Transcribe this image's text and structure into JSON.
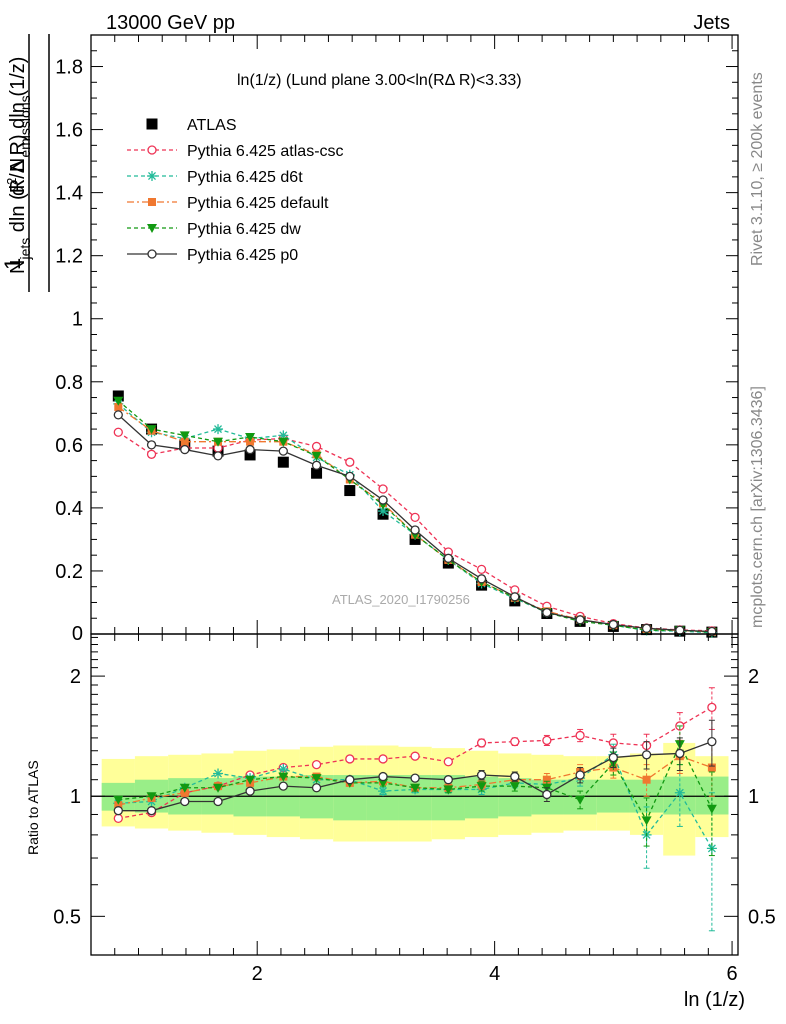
{
  "header": {
    "energy_label": "13000 GeV pp",
    "category_label": "Jets"
  },
  "side_text": {
    "rivet": "Rivet 3.1.10, ≥ 200k events",
    "mcplots": "mcplots.cern.ch [arXiv:1306.3436]"
  },
  "watermark": "ATLAS_2020_I1790256",
  "colors": {
    "ATLAS": "#000000",
    "atlas-csc": "#ee3355",
    "d6t": "#22bb99",
    "default": "#f07830",
    "dw": "#119911",
    "p0": "#333333",
    "band_inner": "#99ee88",
    "band_outer": "#ffff99"
  },
  "chart_data": [
    {
      "type": "scatter",
      "title": "ln(1/z) (Lund plane 3.00<ln(RΔ R)<3.33)",
      "ylabel": "1/N_jets d²N_emissions / dln(R/ΔR) dln(1/z)",
      "xlabel": "ln (1/z)",
      "xlim": [
        0.6,
        6.05
      ],
      "ylim": [
        0,
        1.9
      ],
      "x_ticks": [
        2,
        4,
        6
      ],
      "y_ticks": [
        0.2,
        0.4,
        0.6,
        0.8,
        1,
        1.2,
        1.4,
        1.6,
        1.8
      ],
      "y_tick_labels": [
        "0.2",
        "0.4",
        "0.6",
        "0.8",
        "1",
        "1.2",
        "1.4",
        "1.6",
        "1.8"
      ],
      "bottom_tick_label": "0",
      "legend_position": "top-left",
      "x": [
        0.83,
        1.11,
        1.39,
        1.67,
        1.94,
        2.22,
        2.5,
        2.78,
        3.06,
        3.33,
        3.61,
        3.89,
        4.17,
        4.44,
        4.72,
        5.0,
        5.28,
        5.56,
        5.83
      ],
      "series": [
        {
          "name": "ATLAS",
          "key": "ATLAS",
          "values": [
            0.755,
            0.65,
            0.6,
            0.58,
            0.568,
            0.545,
            0.51,
            0.455,
            0.38,
            0.3,
            0.225,
            0.155,
            0.105,
            0.065,
            0.04,
            0.024,
            0.014,
            0.009,
            0.006
          ]
        },
        {
          "name": "Pythia 6.425 atlas-csc",
          "key": "atlas-csc",
          "values": [
            0.64,
            0.57,
            0.59,
            0.59,
            0.615,
            0.62,
            0.595,
            0.545,
            0.46,
            0.37,
            0.26,
            0.205,
            0.14,
            0.088,
            0.056,
            0.033,
            0.019,
            0.013,
            0.01
          ]
        },
        {
          "name": "Pythia 6.425 d6t",
          "key": "d6t",
          "values": [
            0.73,
            0.64,
            0.62,
            0.65,
            0.62,
            0.63,
            0.56,
            0.505,
            0.39,
            0.315,
            0.235,
            0.16,
            0.113,
            0.068,
            0.044,
            0.028,
            0.011,
            0.009,
            0.004
          ]
        },
        {
          "name": "Pythia 6.425 default",
          "key": "default",
          "values": [
            0.72,
            0.645,
            0.61,
            0.61,
            0.61,
            0.61,
            0.57,
            0.49,
            0.415,
            0.315,
            0.235,
            0.165,
            0.115,
            0.072,
            0.046,
            0.028,
            0.016,
            0.011,
            0.007
          ]
        },
        {
          "name": "Pythia 6.425 dw",
          "key": "dw",
          "values": [
            0.74,
            0.65,
            0.63,
            0.61,
            0.625,
            0.61,
            0.565,
            0.49,
            0.41,
            0.315,
            0.235,
            0.165,
            0.115,
            0.068,
            0.04,
            0.028,
            0.012,
            0.012,
            0.006
          ]
        },
        {
          "name": "Pythia 6.425 p0",
          "key": "p0",
          "values": [
            0.695,
            0.6,
            0.585,
            0.565,
            0.585,
            0.58,
            0.535,
            0.5,
            0.425,
            0.33,
            0.24,
            0.175,
            0.118,
            0.068,
            0.045,
            0.03,
            0.018,
            0.012,
            0.008
          ]
        }
      ],
      "ref_errors": [
        0.015,
        0.01,
        0.01,
        0.01,
        0.01,
        0.01,
        0.01,
        0.01,
        0.008,
        0.007,
        0.006,
        0.005,
        0.004,
        0.003,
        0.002,
        0.002,
        0.002,
        0.002,
        0.002
      ]
    },
    {
      "type": "scatter",
      "ylabel": "Ratio to ATLAS",
      "xlabel": "ln (1/z)",
      "xlim": [
        0.6,
        6.05
      ],
      "ylim": [
        0.4,
        2.55
      ],
      "y_scale": "log",
      "y_tick_labels": [
        "0.5",
        "1",
        "2"
      ],
      "y_ticks": [
        0.5,
        1,
        2
      ],
      "x_tick_labels": [
        "2",
        "4",
        "6"
      ],
      "x_ticks": [
        2,
        4,
        6
      ],
      "x": [
        0.83,
        1.11,
        1.39,
        1.67,
        1.94,
        2.22,
        2.5,
        2.78,
        3.06,
        3.33,
        3.61,
        3.89,
        4.17,
        4.44,
        4.72,
        5.0,
        5.28,
        5.56,
        5.83
      ],
      "bin_edges": [
        0.69,
        0.97,
        1.25,
        1.53,
        1.8,
        2.08,
        2.36,
        2.64,
        2.92,
        3.19,
        3.47,
        3.75,
        4.03,
        4.31,
        4.58,
        4.86,
        5.14,
        5.42,
        5.69,
        5.97
      ],
      "band_inner": [
        [
          0.92,
          1.08
        ],
        [
          0.91,
          1.1
        ],
        [
          0.9,
          1.11
        ],
        [
          0.9,
          1.11
        ],
        [
          0.89,
          1.12
        ],
        [
          0.89,
          1.12
        ],
        [
          0.88,
          1.13
        ],
        [
          0.87,
          1.13
        ],
        [
          0.87,
          1.13
        ],
        [
          0.87,
          1.13
        ],
        [
          0.87,
          1.13
        ],
        [
          0.88,
          1.12
        ],
        [
          0.89,
          1.11
        ],
        [
          0.9,
          1.1
        ],
        [
          0.9,
          1.1
        ],
        [
          0.91,
          1.1
        ],
        [
          0.91,
          1.1
        ],
        [
          0.9,
          1.12
        ],
        [
          0.9,
          1.12
        ]
      ],
      "band_outer": [
        [
          0.84,
          1.24
        ],
        [
          0.83,
          1.26
        ],
        [
          0.82,
          1.27
        ],
        [
          0.81,
          1.28
        ],
        [
          0.8,
          1.3
        ],
        [
          0.79,
          1.31
        ],
        [
          0.78,
          1.33
        ],
        [
          0.77,
          1.34
        ],
        [
          0.77,
          1.34
        ],
        [
          0.77,
          1.33
        ],
        [
          0.78,
          1.32
        ],
        [
          0.79,
          1.3
        ],
        [
          0.8,
          1.28
        ],
        [
          0.81,
          1.27
        ],
        [
          0.82,
          1.26
        ],
        [
          0.82,
          1.26
        ],
        [
          0.8,
          1.28
        ],
        [
          0.71,
          1.36
        ],
        [
          0.79,
          1.26
        ]
      ],
      "series": [
        {
          "name": "Pythia 6.425 atlas-csc",
          "key": "atlas-csc",
          "values": [
            0.88,
            0.91,
            1.02,
            1.06,
            1.13,
            1.18,
            1.2,
            1.24,
            1.24,
            1.26,
            1.22,
            1.36,
            1.37,
            1.38,
            1.42,
            1.36,
            1.34,
            1.5,
            1.67
          ],
          "errors": [
            0.01,
            0.01,
            0.01,
            0.01,
            0.01,
            0.01,
            0.01,
            0.01,
            0.02,
            0.02,
            0.02,
            0.03,
            0.03,
            0.04,
            0.05,
            0.07,
            0.09,
            0.12,
            0.2
          ]
        },
        {
          "name": "Pythia 6.425 d6t",
          "key": "d6t",
          "values": [
            0.96,
            0.97,
            1.05,
            1.14,
            1.11,
            1.17,
            1.1,
            1.1,
            1.03,
            1.04,
            1.04,
            1.04,
            1.08,
            1.07,
            1.11,
            1.27,
            0.8,
            1.02,
            0.74
          ],
          "errors": [
            0.01,
            0.01,
            0.01,
            0.01,
            0.01,
            0.01,
            0.01,
            0.01,
            0.02,
            0.02,
            0.02,
            0.03,
            0.03,
            0.04,
            0.05,
            0.08,
            0.14,
            0.18,
            0.28
          ]
        },
        {
          "name": "Pythia 6.425 default",
          "key": "default",
          "values": [
            0.95,
            0.99,
            1.02,
            1.06,
            1.08,
            1.12,
            1.12,
            1.08,
            1.09,
            1.05,
            1.05,
            1.07,
            1.1,
            1.1,
            1.15,
            1.18,
            1.1,
            1.26,
            1.18
          ],
          "errors": [
            0.01,
            0.01,
            0.01,
            0.01,
            0.01,
            0.01,
            0.01,
            0.01,
            0.02,
            0.02,
            0.02,
            0.03,
            0.03,
            0.04,
            0.05,
            0.07,
            0.1,
            0.12,
            0.18
          ]
        },
        {
          "name": "Pythia 6.425 dw",
          "key": "dw",
          "values": [
            0.98,
            1.0,
            1.05,
            1.05,
            1.1,
            1.12,
            1.11,
            1.08,
            1.08,
            1.05,
            1.04,
            1.06,
            1.06,
            1.05,
            0.98,
            1.21,
            0.87,
            1.35,
            0.93
          ],
          "errors": [
            0.01,
            0.01,
            0.01,
            0.01,
            0.01,
            0.01,
            0.01,
            0.01,
            0.02,
            0.02,
            0.02,
            0.03,
            0.03,
            0.04,
            0.05,
            0.08,
            0.12,
            0.15,
            0.22
          ]
        },
        {
          "name": "Pythia 6.425 p0",
          "key": "p0",
          "values": [
            0.92,
            0.92,
            0.97,
            0.97,
            1.03,
            1.06,
            1.05,
            1.1,
            1.12,
            1.11,
            1.1,
            1.13,
            1.12,
            1.01,
            1.13,
            1.25,
            1.27,
            1.28,
            1.37
          ],
          "errors": [
            0.01,
            0.01,
            0.01,
            0.01,
            0.01,
            0.01,
            0.01,
            0.01,
            0.02,
            0.02,
            0.02,
            0.03,
            0.03,
            0.04,
            0.05,
            0.07,
            0.1,
            0.12,
            0.18
          ]
        }
      ]
    }
  ]
}
